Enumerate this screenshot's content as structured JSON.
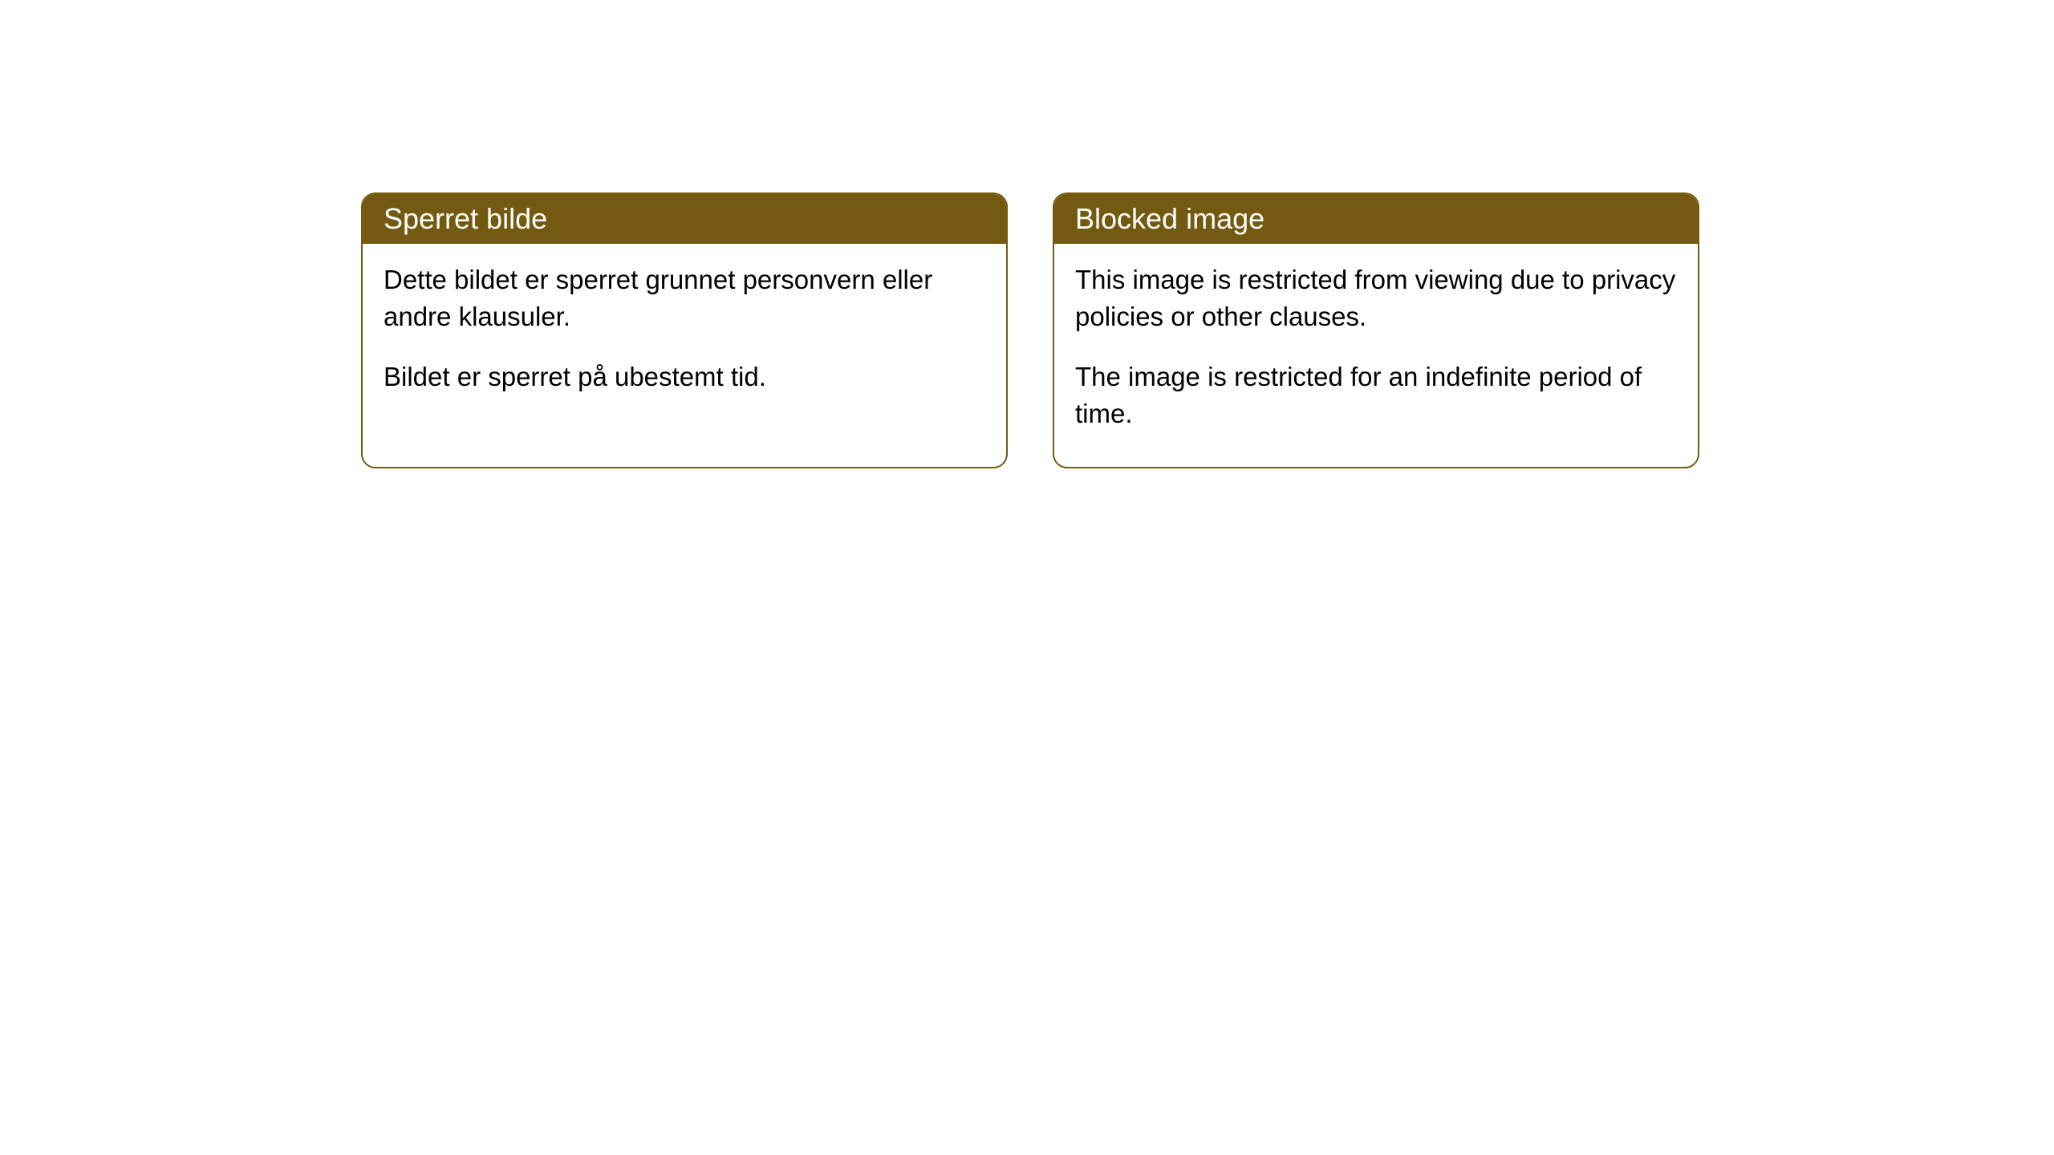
{
  "cards": [
    {
      "title": "Sperret bilde",
      "paragraph1": "Dette bildet er sperret grunnet personvern eller andre klausuler.",
      "paragraph2": "Bildet er sperret på ubestemt tid."
    },
    {
      "title": "Blocked image",
      "paragraph1": "This image is restricted from viewing due to privacy policies or other clauses.",
      "paragraph2": "The image is restricted for an indefinite period of time."
    }
  ],
  "styling": {
    "header_background": "#735a10",
    "header_text_color": "#ffffff",
    "border_color": "#735a10",
    "body_background": "#ffffff",
    "body_text_color": "#000000",
    "border_radius": 18,
    "header_fontsize": 36,
    "body_fontsize": 33
  }
}
